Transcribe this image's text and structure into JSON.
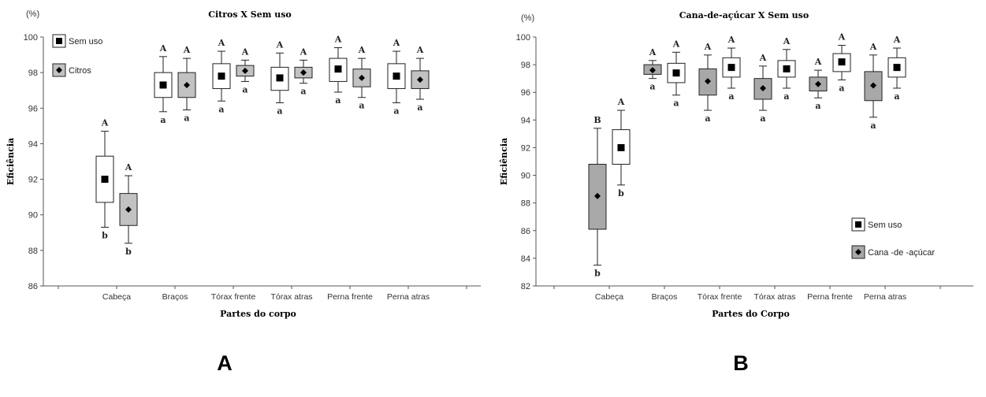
{
  "panel_labels": [
    "A",
    "B"
  ],
  "chart_data": [
    {
      "type": "box",
      "title": "Citros X Sem uso",
      "unit_label": "(%)",
      "xlabel": "Partes do corpo",
      "ylabel": "Eficiência",
      "ylim": [
        86,
        100
      ],
      "yticks": [
        86,
        88,
        90,
        92,
        94,
        96,
        98,
        100
      ],
      "categories": [
        "Cabeça",
        "Braços",
        "Tórax frente",
        "Tórax atras",
        "Perna frente",
        "Perna atras"
      ],
      "legend_position": "top-left",
      "series": [
        {
          "name": "Sem uso",
          "fill": "#ffffff",
          "marker": "square",
          "boxes": [
            {
              "whisker_low": 89.3,
              "q1": 90.7,
              "mean": 92.0,
              "q3": 93.3,
              "whisker_high": 94.7,
              "sig_upper": "A",
              "sig_lower": "b"
            },
            {
              "whisker_low": 95.8,
              "q1": 96.6,
              "mean": 97.3,
              "q3": 98.0,
              "whisker_high": 98.9,
              "sig_upper": "A",
              "sig_lower": "a"
            },
            {
              "whisker_low": 96.4,
              "q1": 97.1,
              "mean": 97.8,
              "q3": 98.5,
              "whisker_high": 99.2,
              "sig_upper": "A",
              "sig_lower": "a"
            },
            {
              "whisker_low": 96.3,
              "q1": 97.0,
              "mean": 97.7,
              "q3": 98.3,
              "whisker_high": 99.1,
              "sig_upper": "A",
              "sig_lower": "a"
            },
            {
              "whisker_low": 96.9,
              "q1": 97.5,
              "mean": 98.2,
              "q3": 98.8,
              "whisker_high": 99.4,
              "sig_upper": "A",
              "sig_lower": "a"
            },
            {
              "whisker_low": 96.3,
              "q1": 97.1,
              "mean": 97.8,
              "q3": 98.5,
              "whisker_high": 99.2,
              "sig_upper": "A",
              "sig_lower": "a"
            }
          ]
        },
        {
          "name": "Citros",
          "fill": "#c2c2c2",
          "marker": "diamond",
          "boxes": [
            {
              "whisker_low": 88.4,
              "q1": 89.4,
              "mean": 90.3,
              "q3": 91.2,
              "whisker_high": 92.2,
              "sig_upper": "A",
              "sig_lower": "b"
            },
            {
              "whisker_low": 95.9,
              "q1": 96.6,
              "mean": 97.3,
              "q3": 98.0,
              "whisker_high": 98.8,
              "sig_upper": "A",
              "sig_lower": "a"
            },
            {
              "whisker_low": 97.5,
              "q1": 97.8,
              "mean": 98.1,
              "q3": 98.4,
              "whisker_high": 98.7,
              "sig_upper": "A",
              "sig_lower": "a"
            },
            {
              "whisker_low": 97.4,
              "q1": 97.7,
              "mean": 98.0,
              "q3": 98.3,
              "whisker_high": 98.7,
              "sig_upper": "A",
              "sig_lower": "a"
            },
            {
              "whisker_low": 96.6,
              "q1": 97.2,
              "mean": 97.7,
              "q3": 98.2,
              "whisker_high": 98.8,
              "sig_upper": "A",
              "sig_lower": "a"
            },
            {
              "whisker_low": 96.5,
              "q1": 97.1,
              "mean": 97.6,
              "q3": 98.1,
              "whisker_high": 98.8,
              "sig_upper": "A",
              "sig_lower": "a"
            }
          ]
        }
      ]
    },
    {
      "type": "box",
      "title": "Cana-de-açúcar X Sem uso",
      "unit_label": "(%)",
      "xlabel": "Partes do Corpo",
      "ylabel": "Eficiência",
      "ylim": [
        82,
        100
      ],
      "yticks": [
        82,
        84,
        86,
        88,
        90,
        92,
        94,
        96,
        98,
        100
      ],
      "categories": [
        "Cabeça",
        "Braços",
        "Tórax frente",
        "Tórax atras",
        "Perna frente",
        "Perna atras"
      ],
      "legend_position": "bottom-right",
      "series": [
        {
          "name": "Cana -de -açúcar",
          "fill": "#a8a8a8",
          "marker": "diamond",
          "boxes": [
            {
              "whisker_low": 83.5,
              "q1": 86.1,
              "mean": 88.5,
              "q3": 90.8,
              "whisker_high": 93.4,
              "sig_upper": "B",
              "sig_lower": "b"
            },
            {
              "whisker_low": 97.0,
              "q1": 97.3,
              "mean": 97.6,
              "q3": 98.0,
              "whisker_high": 98.3,
              "sig_upper": "A",
              "sig_lower": "a"
            },
            {
              "whisker_low": 94.7,
              "q1": 95.8,
              "mean": 96.8,
              "q3": 97.7,
              "whisker_high": 98.7,
              "sig_upper": "A",
              "sig_lower": "a"
            },
            {
              "whisker_low": 94.7,
              "q1": 95.5,
              "mean": 96.3,
              "q3": 97.0,
              "whisker_high": 97.9,
              "sig_upper": "A",
              "sig_lower": "a"
            },
            {
              "whisker_low": 95.6,
              "q1": 96.1,
              "mean": 96.6,
              "q3": 97.1,
              "whisker_high": 97.6,
              "sig_upper": "A",
              "sig_lower": "a"
            },
            {
              "whisker_low": 94.2,
              "q1": 95.4,
              "mean": 96.5,
              "q3": 97.5,
              "whisker_high": 98.7,
              "sig_upper": "A",
              "sig_lower": "a"
            }
          ]
        },
        {
          "name": "Sem uso",
          "fill": "#ffffff",
          "marker": "square",
          "boxes": [
            {
              "whisker_low": 89.3,
              "q1": 90.8,
              "mean": 92.0,
              "q3": 93.3,
              "whisker_high": 94.7,
              "sig_upper": "A",
              "sig_lower": "b"
            },
            {
              "whisker_low": 95.8,
              "q1": 96.7,
              "mean": 97.4,
              "q3": 98.1,
              "whisker_high": 98.9,
              "sig_upper": "A",
              "sig_lower": "a"
            },
            {
              "whisker_low": 96.3,
              "q1": 97.1,
              "mean": 97.8,
              "q3": 98.5,
              "whisker_high": 99.2,
              "sig_upper": "A",
              "sig_lower": "a"
            },
            {
              "whisker_low": 96.3,
              "q1": 97.1,
              "mean": 97.7,
              "q3": 98.3,
              "whisker_high": 99.1,
              "sig_upper": "A",
              "sig_lower": "a"
            },
            {
              "whisker_low": 96.9,
              "q1": 97.5,
              "mean": 98.2,
              "q3": 98.8,
              "whisker_high": 99.4,
              "sig_upper": "A",
              "sig_lower": "a"
            },
            {
              "whisker_low": 96.3,
              "q1": 97.1,
              "mean": 97.8,
              "q3": 98.5,
              "whisker_high": 99.2,
              "sig_upper": "A",
              "sig_lower": "a"
            }
          ]
        }
      ]
    }
  ]
}
